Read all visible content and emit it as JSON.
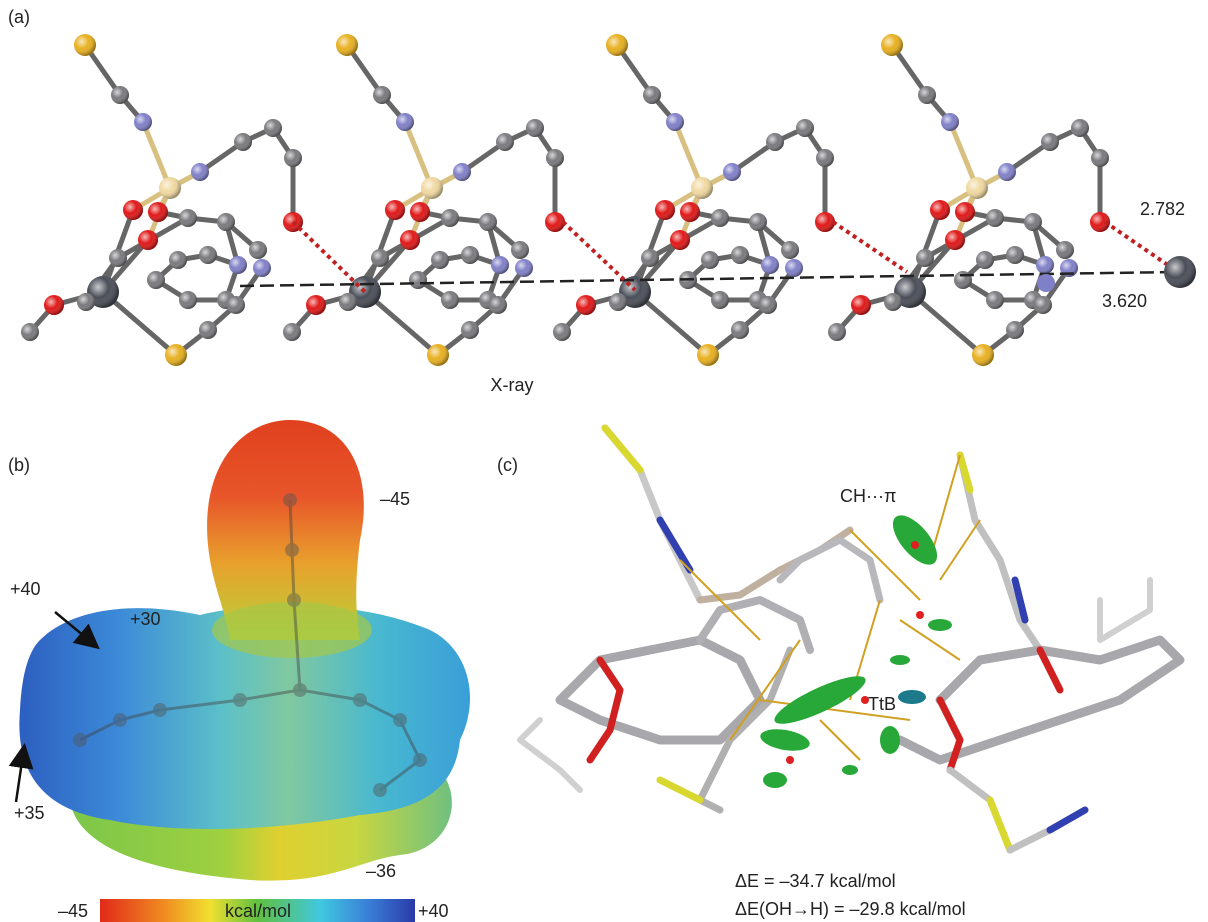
{
  "panel_a": {
    "label": "(a)",
    "distances": [
      "2.782",
      "3.620"
    ],
    "caption": "X-ray"
  },
  "panel_b": {
    "label": "(b)",
    "surface_values": [
      "–45",
      "+40",
      "+30",
      "+35",
      "–36"
    ],
    "color_bar": {
      "min": "–45",
      "unit": "kcal/mol",
      "max": "+40"
    }
  },
  "panel_c": {
    "label": "(c)",
    "interactions": [
      "CH···π",
      "TtB"
    ],
    "energies": [
      "ΔE = –34.7 kcal/mol",
      "ΔE(OH→H) = –29.8 kcal/mol"
    ]
  }
}
